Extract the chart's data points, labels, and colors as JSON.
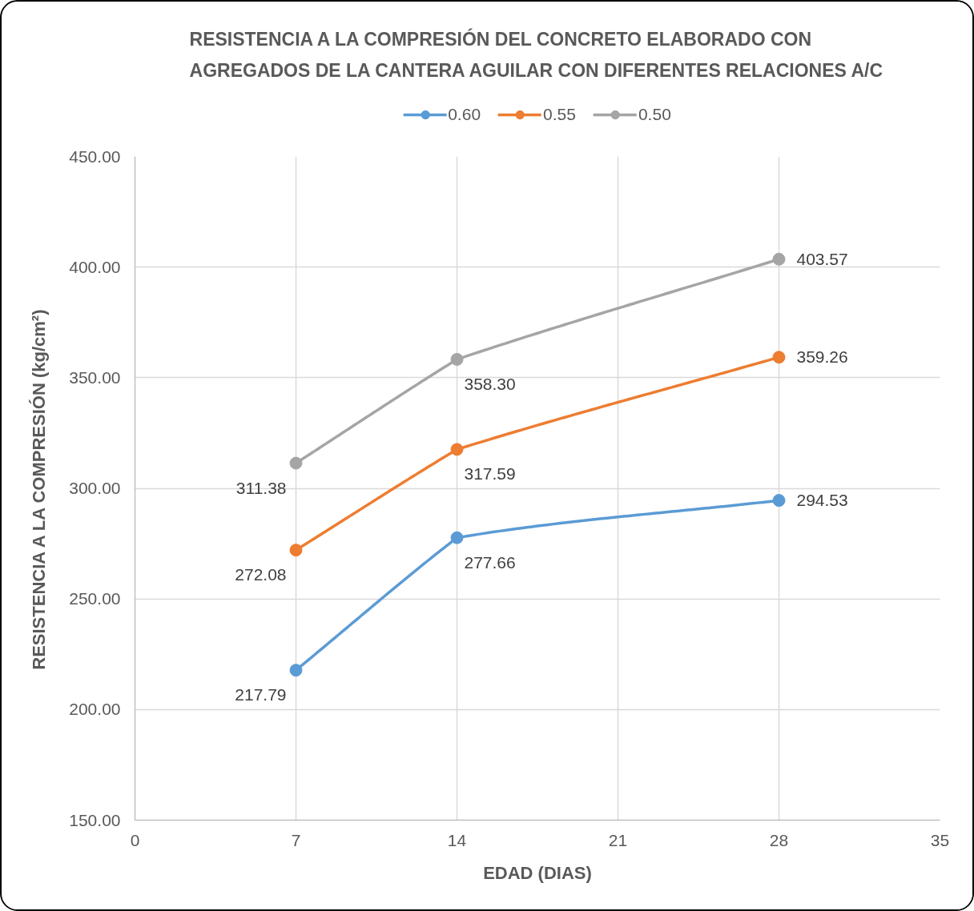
{
  "chart_data": {
    "type": "line",
    "title": "RESISTENCIA A LA COMPRESIÓN DEL CONCRETO ELABORADO CON AGREGADOS DE LA CANTERA AGUILAR CON DIFERENTES RELACIONES A/C",
    "xlabel": "EDAD (DIAS)",
    "ylabel": "RESISTENCIA A LA COMPRESIÓN (kg/cm²)",
    "x": [
      7,
      14,
      28
    ],
    "series": [
      {
        "name": "0.60",
        "color": "#5b9bd5",
        "values": [
          217.79,
          277.66,
          294.53
        ],
        "value_labels": [
          "217.79",
          "277.66",
          "294.53"
        ]
      },
      {
        "name": "0.55",
        "color": "#ed7d31",
        "values": [
          272.08,
          317.59,
          359.26
        ],
        "value_labels": [
          "272.08",
          "317.59",
          "359.26"
        ]
      },
      {
        "name": "0.50",
        "color": "#a5a5a5",
        "values": [
          311.38,
          358.3,
          403.57
        ],
        "value_labels": [
          "311.38",
          "358.30",
          "403.57"
        ]
      }
    ],
    "xlim": [
      0,
      35
    ],
    "xticks": [
      0,
      7,
      14,
      21,
      28,
      35
    ],
    "ylim": [
      150,
      450
    ],
    "yticks": [
      {
        "value": 150,
        "label": "150.00"
      },
      {
        "value": 200,
        "label": "200.00"
      },
      {
        "value": 250,
        "label": "250.00"
      },
      {
        "value": 300,
        "label": "300.00"
      },
      {
        "value": 350,
        "label": "350.00"
      },
      {
        "value": 400,
        "label": "400.00"
      },
      {
        "value": 450,
        "label": "450.00"
      }
    ],
    "grid": true,
    "legend": "top",
    "marker": "circle"
  }
}
